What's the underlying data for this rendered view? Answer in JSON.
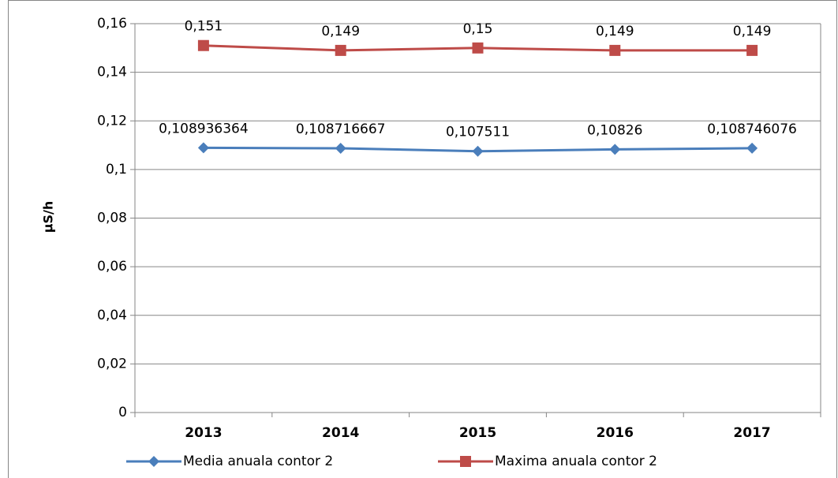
{
  "chart_data": {
    "type": "line",
    "y_label": "µS/h",
    "categories": [
      "2013",
      "2014",
      "2015",
      "2016",
      "2017"
    ],
    "series": [
      {
        "name": "Media anuala contor 2",
        "color": "#4a7ebb",
        "marker": "diamond",
        "values": [
          0.108936364,
          0.108716667,
          0.107511,
          0.10826,
          0.108746076
        ],
        "value_labels": [
          "0,108936364",
          "0,108716667",
          "0,107511",
          "0,10826",
          "0,108746076"
        ]
      },
      {
        "name": "Maxima anuala contor 2",
        "color": "#be4b48",
        "marker": "square",
        "values": [
          0.151,
          0.149,
          0.15,
          0.149,
          0.149
        ],
        "value_labels": [
          "0,151",
          "0,149",
          "0,15",
          "0,149",
          "0,149"
        ]
      }
    ],
    "ylim": [
      0,
      0.16
    ],
    "yticks": [
      0,
      {
        "value": 0.02,
        "label": "0,02"
      },
      {
        "value": 0.04,
        "label": "0,04"
      },
      {
        "value": 0.06,
        "label": "0,06"
      },
      {
        "value": 0.08,
        "label": "0,08"
      },
      {
        "value": 0.1,
        "label": "0,1"
      },
      {
        "value": 0.12,
        "label": "0,12"
      },
      {
        "value": 0.14,
        "label": "0,14"
      },
      {
        "value": 0.16,
        "label": "0,16"
      }
    ],
    "grid": true,
    "legend": "bottom"
  }
}
